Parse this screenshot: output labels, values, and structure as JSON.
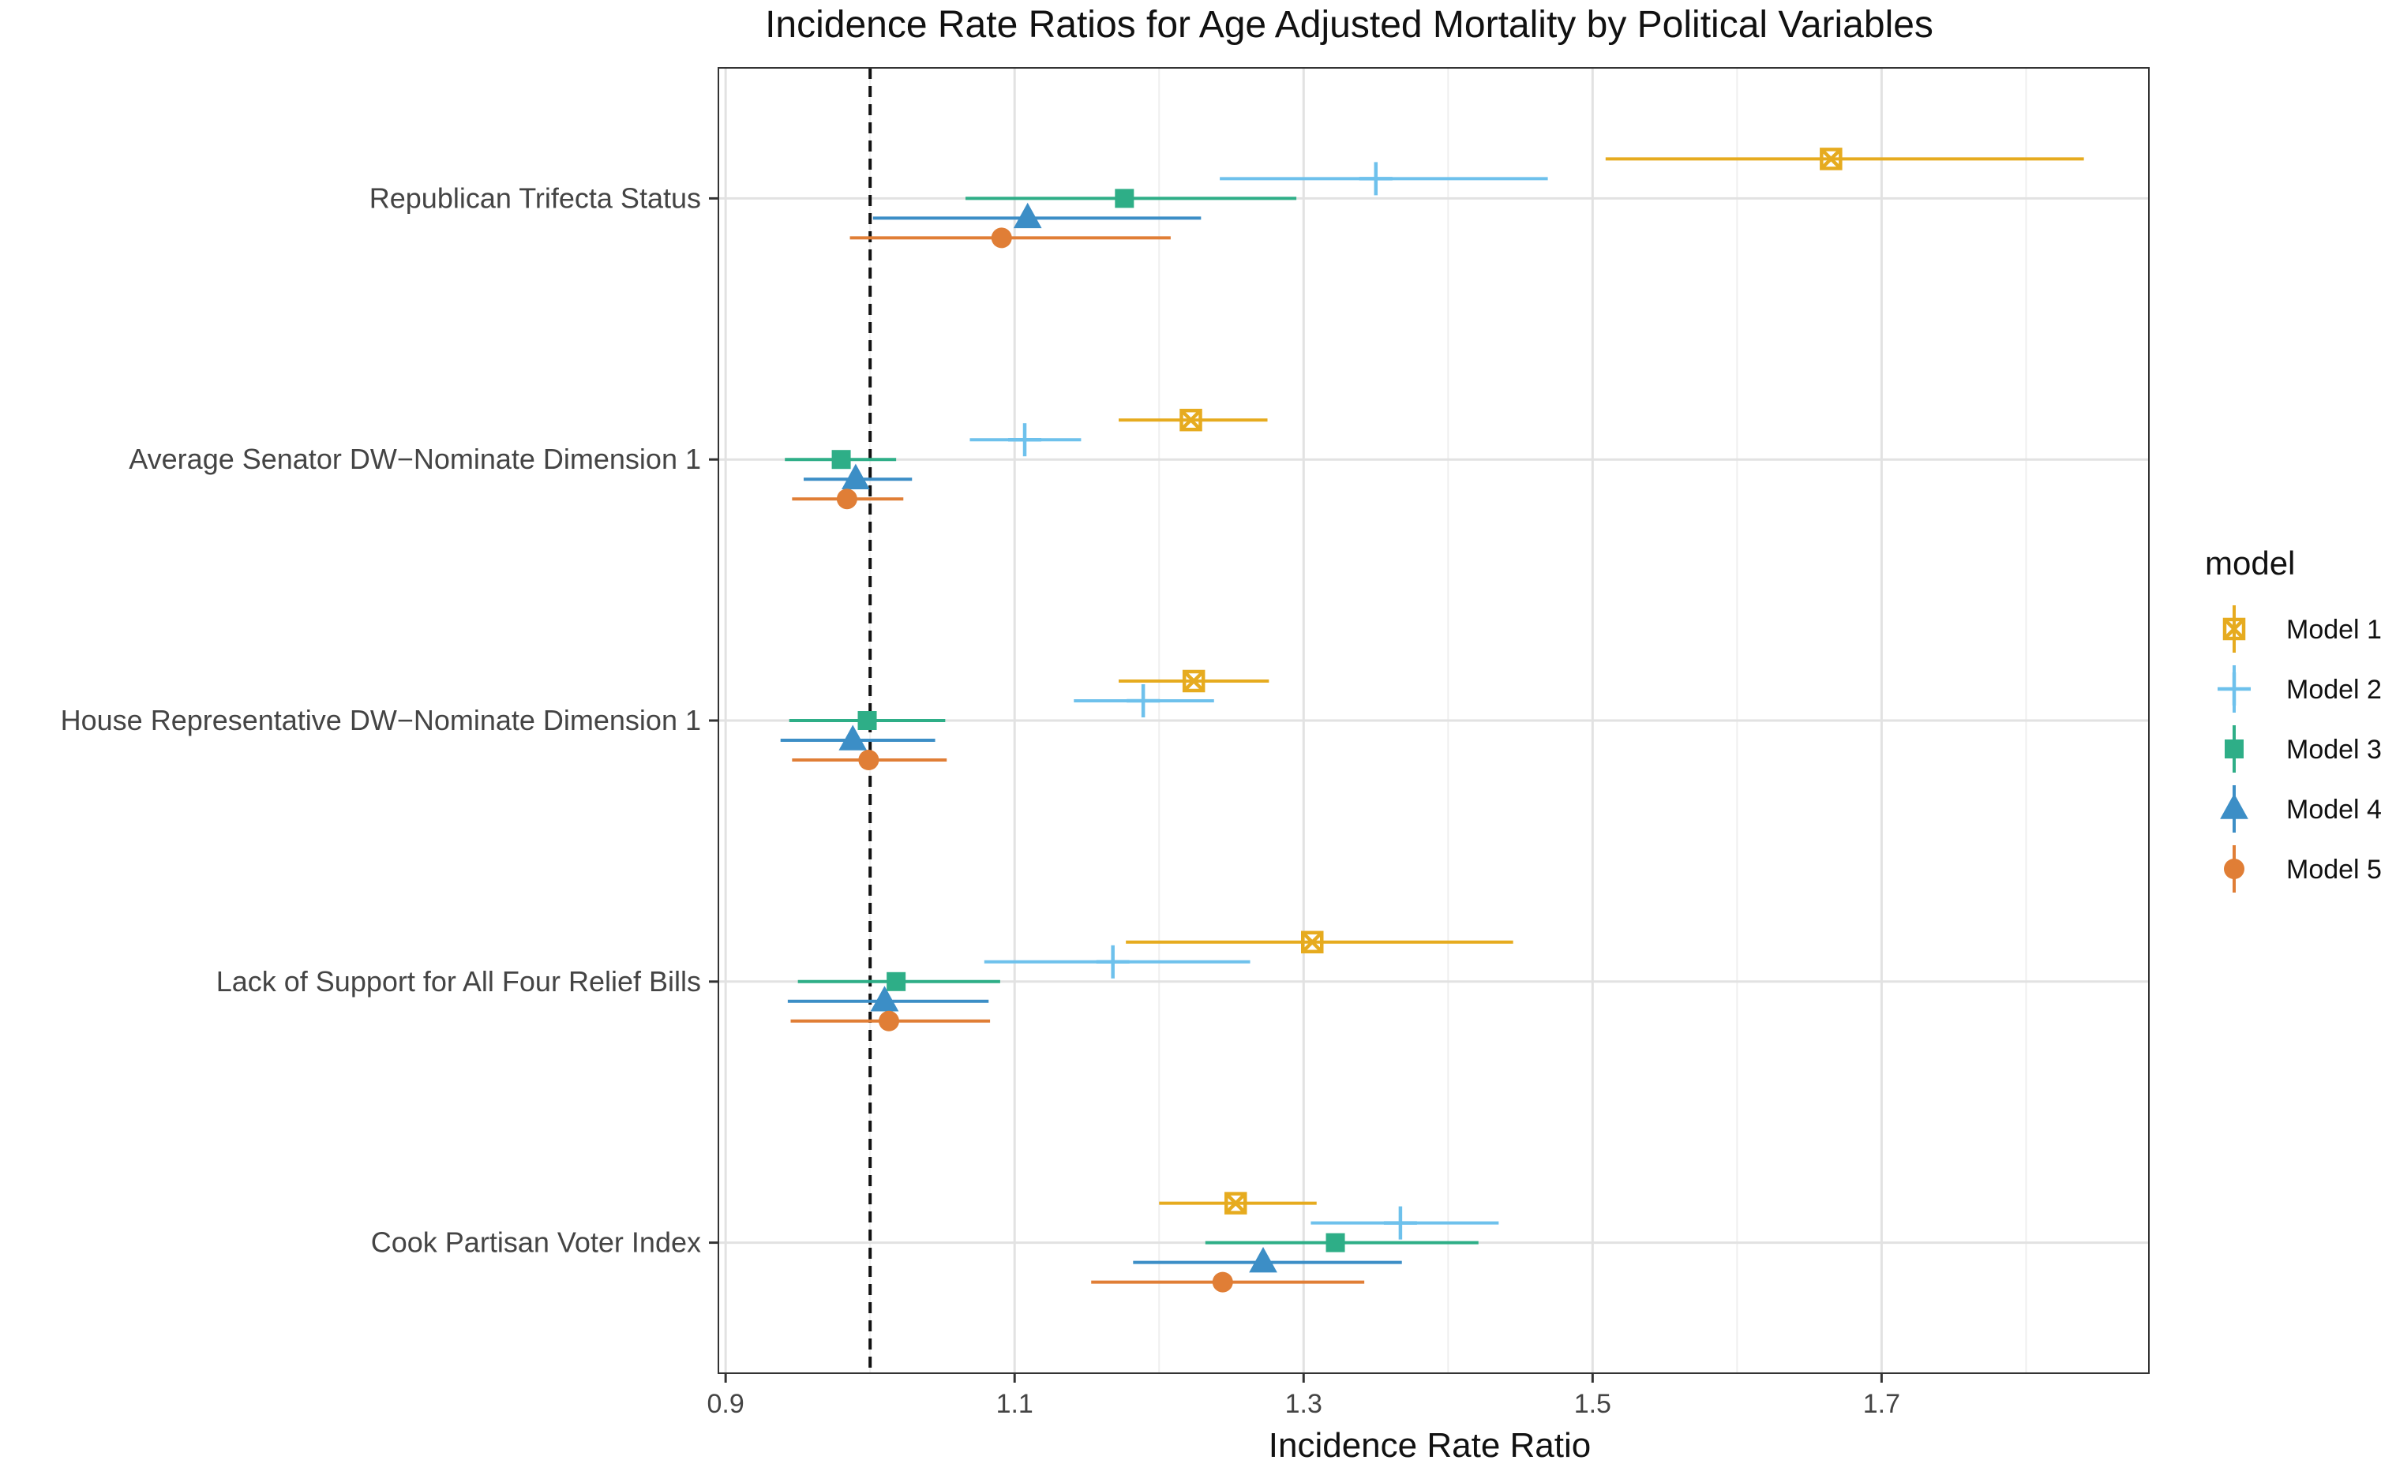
{
  "chart_data": {
    "type": "scatter",
    "title": "Incidence Rate Ratios for Age Adjusted Mortality by Political Variables",
    "xlabel": "Incidence Rate Ratio",
    "ylabel": "",
    "xlim": [
      0.895,
      1.885
    ],
    "x_ticks": [
      0.9,
      1.1,
      1.3,
      1.5,
      1.7
    ],
    "x_tick_labels": [
      "0.9",
      "1.1",
      "1.3",
      "1.5",
      "1.7"
    ],
    "reference_line": 1.0,
    "grid": true,
    "legend_title": "model",
    "legend_position": "right",
    "categories": [
      "Republican Trifecta Status",
      "Average Senator DW−Nominate Dimension 1",
      "House Representative DW−Nominate Dimension 1",
      "Lack of Support for All Four Relief Bills",
      "Cook Partisan Voter Index"
    ],
    "series": [
      {
        "name": "Model 1",
        "color": "#E6AB1F",
        "shape": "square-cross",
        "estimate": [
          1.665,
          1.222,
          1.224,
          1.306,
          1.253
        ],
        "lower": [
          1.509,
          1.172,
          1.172,
          1.177,
          1.2
        ],
        "upper": [
          1.84,
          1.275,
          1.276,
          1.445,
          1.309
        ]
      },
      {
        "name": "Model 2",
        "color": "#6EC1EC",
        "shape": "plus",
        "estimate": [
          1.35,
          1.107,
          1.189,
          1.168,
          1.367
        ],
        "lower": [
          1.242,
          1.069,
          1.141,
          1.079,
          1.305
        ],
        "upper": [
          1.469,
          1.146,
          1.238,
          1.263,
          1.435
        ]
      },
      {
        "name": "Model 3",
        "color": "#2EAE87",
        "shape": "square",
        "estimate": [
          1.176,
          0.98,
          0.998,
          1.018,
          1.322
        ],
        "lower": [
          1.066,
          0.941,
          0.944,
          0.95,
          1.232
        ],
        "upper": [
          1.295,
          1.018,
          1.052,
          1.09,
          1.421
        ]
      },
      {
        "name": "Model 4",
        "color": "#3C8EC6",
        "shape": "triangle",
        "estimate": [
          1.109,
          0.99,
          0.988,
          1.01,
          1.272
        ],
        "lower": [
          1.002,
          0.954,
          0.938,
          0.943,
          1.182
        ],
        "upper": [
          1.229,
          1.029,
          1.045,
          1.082,
          1.368
        ]
      },
      {
        "name": "Model 5",
        "color": "#E07E36",
        "shape": "circle",
        "estimate": [
          1.091,
          0.984,
          0.999,
          1.013,
          1.244
        ],
        "lower": [
          0.986,
          0.946,
          0.946,
          0.945,
          1.153
        ],
        "upper": [
          1.208,
          1.023,
          1.053,
          1.083,
          1.342
        ]
      }
    ]
  }
}
